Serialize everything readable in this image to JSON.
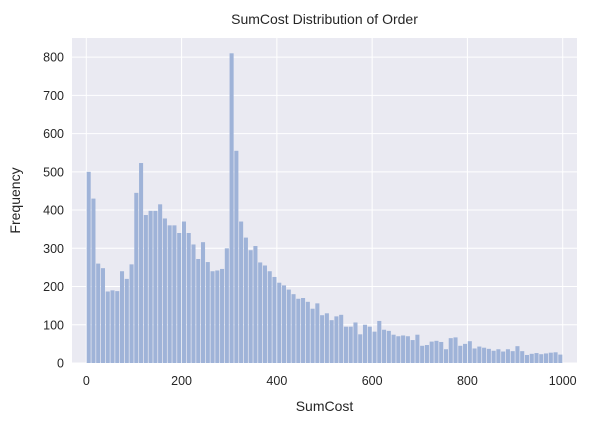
{
  "chart_data": {
    "type": "bar",
    "title": "SumCost Distribution of Order",
    "xlabel": "SumCost",
    "ylabel": "Frequency",
    "xlim": [
      -30,
      1030
    ],
    "ylim": [
      0,
      850
    ],
    "xticks": [
      "0",
      "200",
      "400",
      "600",
      "800",
      "1000"
    ],
    "yticks": [
      "0",
      "100",
      "200",
      "300",
      "400",
      "500",
      "600",
      "700",
      "800"
    ],
    "grid": true,
    "bin_width": 10,
    "bin_start": 0,
    "values": [
      500,
      430,
      260,
      248,
      187,
      190,
      188,
      240,
      220,
      258,
      445,
      523,
      387,
      398,
      398,
      415,
      378,
      360,
      360,
      340,
      370,
      340,
      310,
      272,
      316,
      264,
      240,
      242,
      246,
      300,
      810,
      555,
      370,
      328,
      295,
      306,
      263,
      255,
      240,
      225,
      210,
      203,
      192,
      180,
      168,
      170,
      160,
      142,
      156,
      125,
      130,
      112,
      122,
      126,
      95,
      95,
      106,
      75,
      100,
      95,
      82,
      110,
      87,
      84,
      74,
      70,
      72,
      70,
      60,
      74,
      45,
      47,
      56,
      58,
      55,
      36,
      65,
      67,
      45,
      50,
      57,
      38,
      43,
      40,
      37,
      32,
      36,
      30,
      36,
      31,
      44,
      31,
      21,
      24,
      26,
      23,
      25,
      27,
      28,
      22
    ],
    "bar_color": "#9fb3d8",
    "background_color": "#eaeaf2",
    "grid_color": "#ffffff"
  }
}
